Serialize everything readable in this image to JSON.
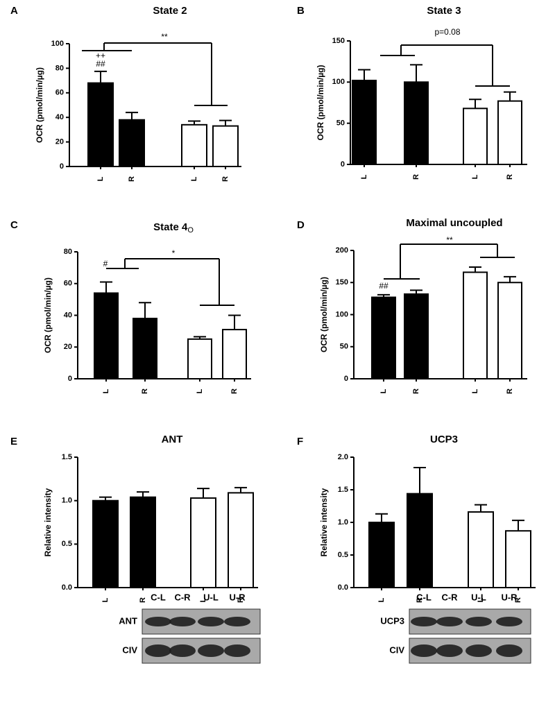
{
  "chart_data": [
    {
      "type": "bar",
      "panel": "A",
      "title": "State 2",
      "ylabel": "OCR (pmol/min/µg)",
      "categories": [
        "L",
        "R",
        "L",
        "R"
      ],
      "values": [
        68,
        38,
        34,
        33
      ],
      "errors": [
        9.5,
        6,
        3,
        4.5
      ],
      "colors": [
        "#000000",
        "#000000",
        "#ffffff",
        "#ffffff"
      ],
      "ylim": [
        0,
        100
      ],
      "yticks": [
        0,
        20,
        40,
        60,
        80,
        100
      ],
      "annotations": [
        "**",
        "++",
        "##"
      ]
    },
    {
      "type": "bar",
      "panel": "B",
      "title": "State 3",
      "ylabel": "OCR (pmol/min/µg)",
      "categories": [
        "L",
        "R",
        "L",
        "R"
      ],
      "values": [
        102,
        100,
        68,
        77
      ],
      "errors": [
        13,
        21,
        11,
        11
      ],
      "colors": [
        "#000000",
        "#000000",
        "#ffffff",
        "#ffffff"
      ],
      "ylim": [
        0,
        150
      ],
      "yticks": [
        0,
        50,
        100,
        150
      ],
      "annotations": [
        "p=0.08"
      ]
    },
    {
      "type": "bar",
      "panel": "C",
      "title": "State 4",
      "title_subscript": "O",
      "ylabel": "OCR (pmol/min/µg)",
      "categories": [
        "L",
        "R",
        "L",
        "R"
      ],
      "values": [
        54,
        38,
        25,
        31
      ],
      "errors": [
        7,
        10,
        1.5,
        9
      ],
      "colors": [
        "#000000",
        "#000000",
        "#ffffff",
        "#ffffff"
      ],
      "ylim": [
        0,
        80
      ],
      "yticks": [
        0,
        20,
        40,
        60,
        80
      ],
      "annotations": [
        "*",
        "#"
      ]
    },
    {
      "type": "bar",
      "panel": "D",
      "title": "Maximal uncoupled",
      "ylabel": "OCR (pmol/min/µg)",
      "categories": [
        "L",
        "R",
        "L",
        "R"
      ],
      "values": [
        127,
        132,
        166,
        150
      ],
      "errors": [
        4,
        6,
        8,
        9
      ],
      "colors": [
        "#000000",
        "#000000",
        "#ffffff",
        "#ffffff"
      ],
      "ylim": [
        0,
        200
      ],
      "yticks": [
        0,
        50,
        100,
        150,
        200
      ],
      "annotations": [
        "**",
        "##"
      ]
    },
    {
      "type": "bar",
      "panel": "E",
      "title": "ANT",
      "ylabel": "Relative intensity",
      "categories": [
        "L",
        "R",
        "L",
        "R"
      ],
      "values": [
        1.0,
        1.04,
        1.03,
        1.09
      ],
      "errors": [
        0.04,
        0.06,
        0.11,
        0.06
      ],
      "colors": [
        "#000000",
        "#000000",
        "#ffffff",
        "#ffffff"
      ],
      "ylim": [
        0,
        1.5
      ],
      "yticks": [
        {
          "value": 0,
          "label": "0.0"
        },
        {
          "value": 0.5,
          "label": "0.5"
        },
        {
          "value": 1,
          "label": "1.0"
        },
        {
          "value": 1.5,
          "label": "1.5"
        }
      ],
      "annotations": []
    },
    {
      "type": "bar",
      "panel": "F",
      "title": "UCP3",
      "ylabel": "Relative intensity",
      "categories": [
        "L",
        "R",
        "L",
        "R"
      ],
      "values": [
        1.0,
        1.44,
        1.16,
        0.87
      ],
      "errors": [
        0.13,
        0.4,
        0.11,
        0.16
      ],
      "colors": [
        "#000000",
        "#000000",
        "#ffffff",
        "#ffffff"
      ],
      "ylim": [
        0,
        2
      ],
      "yticks": [
        {
          "value": 0,
          "label": "0.0"
        },
        {
          "value": 0.5,
          "label": "0.5"
        },
        {
          "value": 1,
          "label": "1.0"
        },
        {
          "value": 1.5,
          "label": "1.5"
        },
        {
          "value": 2,
          "label": "2.0"
        }
      ],
      "annotations": []
    }
  ],
  "blots": [
    {
      "lanes": [
        "C-L",
        "C-R",
        "U-L",
        "U-R"
      ],
      "rows": [
        "ANT",
        "CIV"
      ]
    },
    {
      "lanes": [
        "C-L",
        "C-R",
        "U-L",
        "U-R"
      ],
      "rows": [
        "UCP3",
        "CIV"
      ]
    }
  ]
}
